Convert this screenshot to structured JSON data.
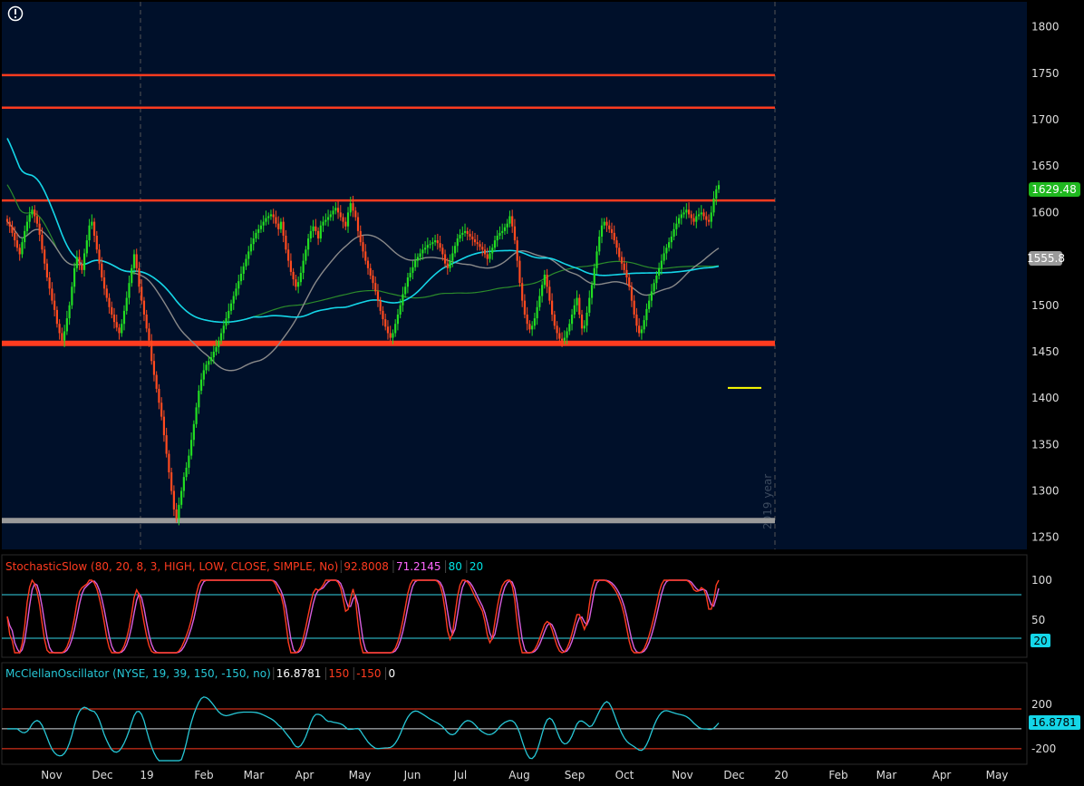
{
  "chart_data": [
    {
      "type": "candlestick",
      "panel": "price",
      "y_ticks": [
        1250,
        1300,
        1350,
        1400,
        1450,
        1500,
        1550,
        1600,
        1650,
        1700,
        1750,
        1800
      ],
      "y_tick_labels": [
        "1250",
        "1300",
        "1350",
        "1400",
        "1450",
        "1500",
        "1550",
        "1600",
        "1650",
        "1700",
        "1750",
        "1800"
      ],
      "ylim": [
        1237,
        1827
      ],
      "current_price_label": "1629.48",
      "ma_value_label": "1555.8",
      "year_marker_text": "2019 year",
      "horizontal_levels": [
        {
          "value": 1748,
          "color": "#ff3b1f",
          "weight": "thin"
        },
        {
          "value": 1713,
          "color": "#ff3b1f",
          "weight": "thin"
        },
        {
          "value": 1613,
          "color": "#ff3b1f",
          "weight": "thin"
        },
        {
          "value": 1459,
          "color": "#ff3b1f",
          "weight": "thick"
        },
        {
          "value": 1268,
          "color": "#9a9a9a",
          "weight": "thick"
        }
      ],
      "marker_level": {
        "value": 1411,
        "color": "#ffff00"
      },
      "closes": [
        1590,
        1585,
        1578,
        1570,
        1562,
        1555,
        1568,
        1580,
        1590,
        1598,
        1603,
        1596,
        1588,
        1576,
        1560,
        1545,
        1530,
        1518,
        1505,
        1495,
        1480,
        1470,
        1462,
        1472,
        1486,
        1500,
        1520,
        1540,
        1552,
        1545,
        1538,
        1556,
        1570,
        1586,
        1590,
        1575,
        1560,
        1545,
        1530,
        1518,
        1508,
        1498,
        1490,
        1482,
        1476,
        1470,
        1480,
        1494,
        1508,
        1524,
        1540,
        1555,
        1540,
        1520,
        1505,
        1490,
        1475,
        1462,
        1440,
        1425,
        1410,
        1395,
        1380,
        1360,
        1340,
        1320,
        1300,
        1280,
        1270,
        1285,
        1300,
        1315,
        1325,
        1338,
        1355,
        1372,
        1390,
        1408,
        1420,
        1430,
        1436,
        1440,
        1444,
        1450,
        1455,
        1462,
        1470,
        1478,
        1486,
        1494,
        1502,
        1510,
        1518,
        1526,
        1534,
        1542,
        1550,
        1558,
        1566,
        1572,
        1578,
        1582,
        1586,
        1590,
        1594,
        1596,
        1598,
        1595,
        1588,
        1582,
        1590,
        1575,
        1560,
        1548,
        1536,
        1528,
        1520,
        1525,
        1535,
        1548,
        1560,
        1572,
        1580,
        1585,
        1580,
        1572,
        1586,
        1590,
        1592,
        1595,
        1598,
        1602,
        1605,
        1600,
        1595,
        1590,
        1585,
        1600,
        1610,
        1602,
        1595,
        1580,
        1568,
        1558,
        1548,
        1540,
        1532,
        1524,
        1515,
        1505,
        1494,
        1485,
        1477,
        1470,
        1465,
        1470,
        1480,
        1490,
        1500,
        1512,
        1520,
        1530,
        1535,
        1541,
        1548,
        1552,
        1556,
        1560,
        1562,
        1565,
        1566,
        1568,
        1570,
        1567,
        1562,
        1555,
        1545,
        1540,
        1548,
        1556,
        1564,
        1572,
        1576,
        1578,
        1580,
        1577,
        1574,
        1571,
        1568,
        1566,
        1563,
        1560,
        1555,
        1550,
        1556,
        1562,
        1570,
        1575,
        1578,
        1580,
        1584,
        1588,
        1596,
        1585,
        1570,
        1548,
        1524,
        1505,
        1490,
        1480,
        1474,
        1478,
        1486,
        1498,
        1510,
        1522,
        1533,
        1520,
        1505,
        1490,
        1478,
        1470,
        1464,
        1462,
        1465,
        1472,
        1480,
        1490,
        1500,
        1508,
        1490,
        1475,
        1478,
        1492,
        1508,
        1522,
        1540,
        1558,
        1574,
        1586,
        1590,
        1586,
        1582,
        1578,
        1570,
        1562,
        1552,
        1545,
        1538,
        1530,
        1520,
        1505,
        1490,
        1478,
        1470,
        1474,
        1484,
        1496,
        1505,
        1515,
        1524,
        1532,
        1540,
        1548,
        1556,
        1562,
        1568,
        1574,
        1582,
        1588,
        1594,
        1598,
        1600,
        1603,
        1598,
        1594,
        1590,
        1596,
        1598,
        1600,
        1596,
        1592,
        1590,
        1600,
        1615,
        1625,
        1629.48
      ]
    },
    {
      "type": "line",
      "panel": "stochastic",
      "title": "StochasticSlow (80, 20, 8, 3, HIGH, LOW, CLOSE, SIMPLE, No)",
      "values_shown": [
        "92.8008",
        "71.2145",
        "80",
        "20"
      ],
      "value_colors": [
        "#ff3b1f",
        "#ff66ff",
        "#00e5e5",
        "#00e5e5"
      ],
      "levels": [
        80,
        20
      ],
      "y_tick_labels": [
        "100",
        "50"
      ],
      "level_tag": "20",
      "ylim": [
        0,
        100
      ]
    },
    {
      "type": "line",
      "panel": "mcclellan",
      "title": "McClellanOscillator (NYSE, 19, 39, 150, -150, no)",
      "values_shown": [
        "16.8781",
        "150",
        "-150",
        "0"
      ],
      "value_colors": [
        "#ffffff",
        "#ff3b1f",
        "#ff3b1f",
        "#ffffff"
      ],
      "levels": [
        150,
        0,
        -150
      ],
      "y_tick_labels": [
        "200",
        "-200"
      ],
      "value_tag": "16.8781",
      "ylim": [
        -260,
        300
      ]
    }
  ],
  "x_axis": {
    "labels": [
      "Nov",
      "Dec",
      "19",
      "Feb",
      "Mar",
      "Apr",
      "May",
      "Jun",
      "Jul",
      "Aug",
      "Sep",
      "Oct",
      "Nov",
      "Dec",
      "20",
      "Feb",
      "Mar",
      "Apr",
      "May"
    ]
  },
  "colors": {
    "background": "#000000",
    "plot_bg": "#00102a",
    "up_candle": "#22dd22",
    "down_candle": "#ff4a1f",
    "ma_cyan": "#14d6e8",
    "ma_gray": "#8a8a8a",
    "ma_green": "#2b8a2b",
    "stoch_k": "#ff3b1f",
    "stoch_d": "#d75fe0",
    "mcclellan": "#27c7d6",
    "level_cyan": "#35d5e6",
    "level_red": "#ff3b1f",
    "price_tag_bg": "#1fb81f",
    "ma_tag_bg": "#9a9a9a"
  },
  "icons": {
    "alert": "alert-circle-icon"
  }
}
